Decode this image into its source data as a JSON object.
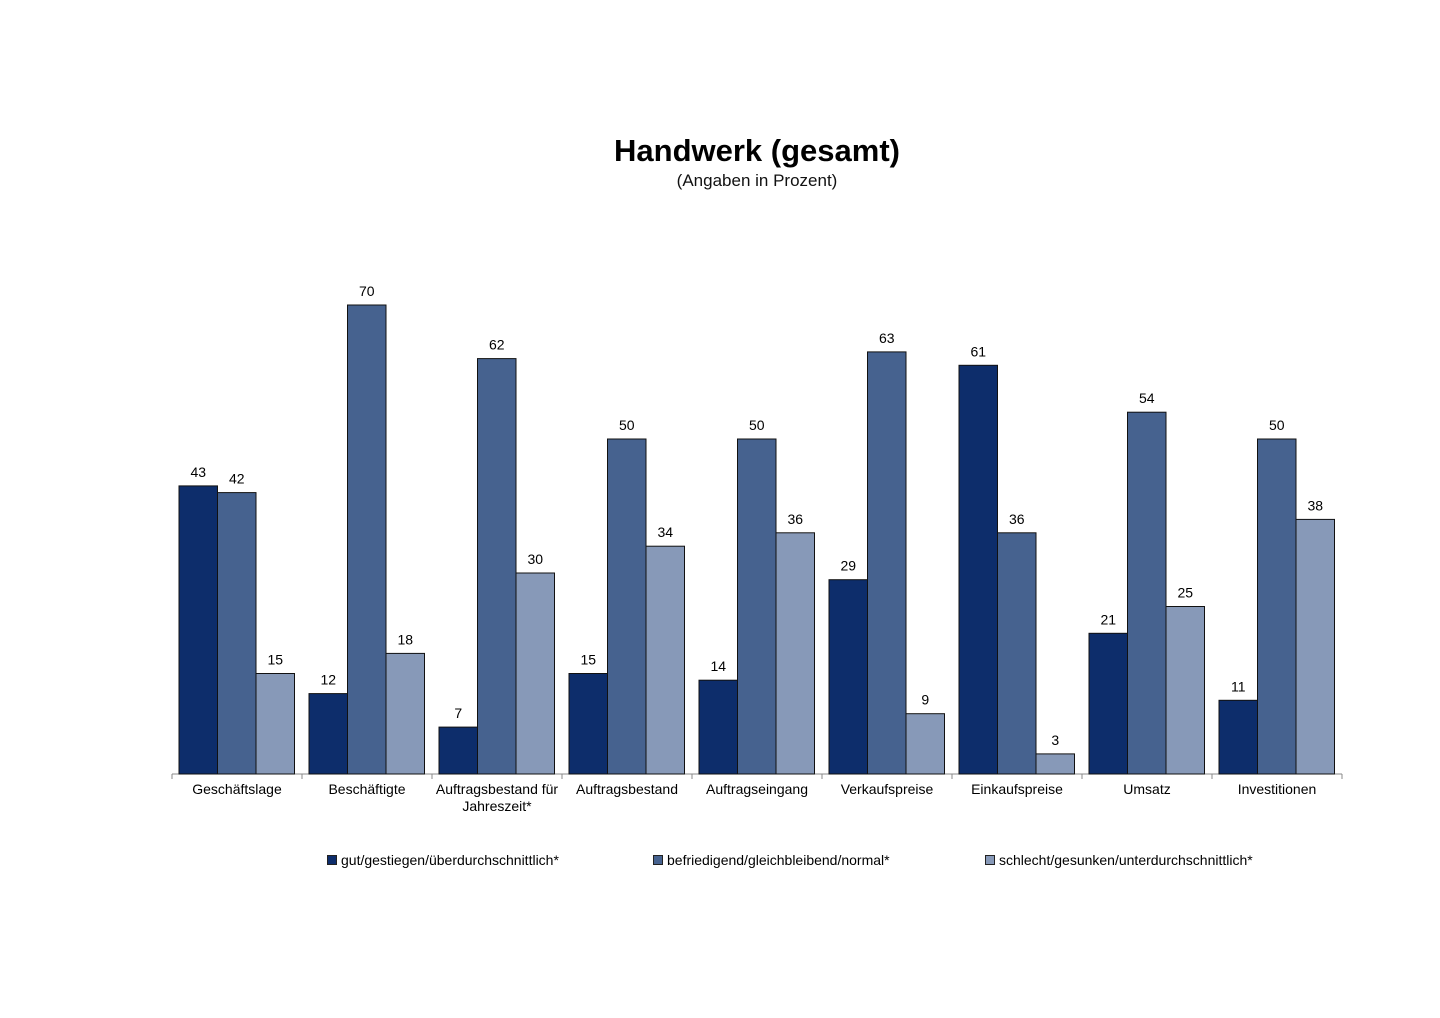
{
  "chart_data": {
    "type": "bar",
    "title": "Handwerk (gesamt)",
    "subtitle": "(Angaben in Prozent)",
    "categories": [
      "Geschäftslage",
      "Beschäftigte",
      "Auftragsbestand für Jahreszeit*",
      "Auftragsbestand",
      "Auftragseingang",
      "Verkaufspreise",
      "Einkaufspreise",
      "Umsatz",
      "Investitionen"
    ],
    "series": [
      {
        "name": "gut/gestiegen/überdurchschnittlich*",
        "color": "#0d2d6b",
        "values": [
          43,
          12,
          7,
          15,
          14,
          29,
          61,
          21,
          11
        ]
      },
      {
        "name": "befriedigend/gleichbleibend/normal*",
        "color": "#46628f",
        "values": [
          42,
          70,
          62,
          50,
          50,
          63,
          36,
          54,
          50
        ]
      },
      {
        "name": "schlecht/gesunken/unterdurchschnittlich*",
        "color": "#8799b8",
        "values": [
          15,
          18,
          30,
          34,
          36,
          9,
          3,
          25,
          38
        ]
      }
    ],
    "ylim": [
      0,
      70
    ],
    "grid": false,
    "legend_position": "bottom"
  }
}
